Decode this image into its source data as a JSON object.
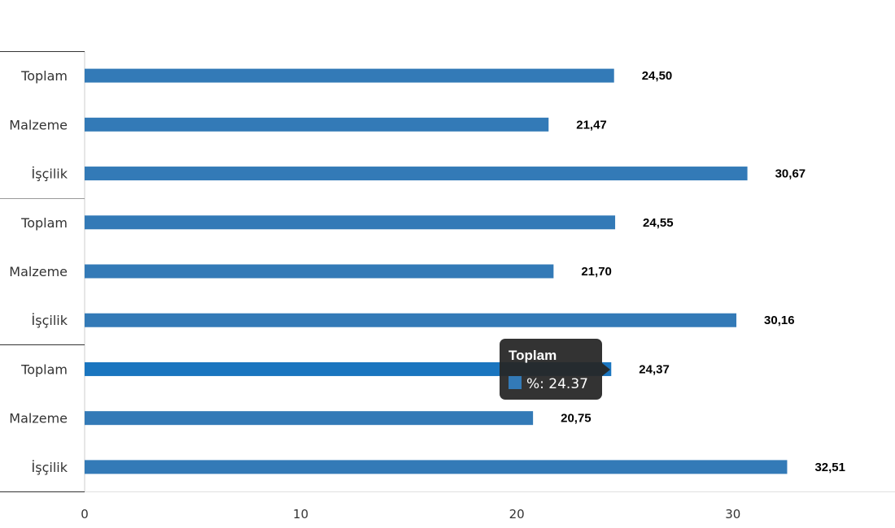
{
  "chart_data": {
    "type": "bar",
    "orientation": "horizontal",
    "categories": [
      "Toplam",
      "Malzeme",
      "İşçilik",
      "Toplam",
      "Malzeme",
      "İşçilik",
      "Toplam",
      "Malzeme",
      "İşçilik"
    ],
    "values": [
      24.5,
      21.47,
      30.67,
      24.55,
      21.7,
      30.16,
      24.37,
      20.75,
      32.51
    ],
    "data_labels": [
      "24,50",
      "21,47",
      "30,67",
      "24,55",
      "21,70",
      "30,16",
      "24,37",
      "20,75",
      "32,51"
    ],
    "groups": 3,
    "group_size": 3,
    "x_ticks": [
      0,
      10,
      20,
      30
    ],
    "xlim": [
      0,
      37.5
    ],
    "grid": false,
    "legend": "none",
    "bar_color": "#337ab7",
    "highlight_color": "#1a75bf",
    "highlight_index": 6
  },
  "tooltip": {
    "title": "Toplam",
    "text": "%: 24.37",
    "swatch_color": "#337ab7"
  }
}
